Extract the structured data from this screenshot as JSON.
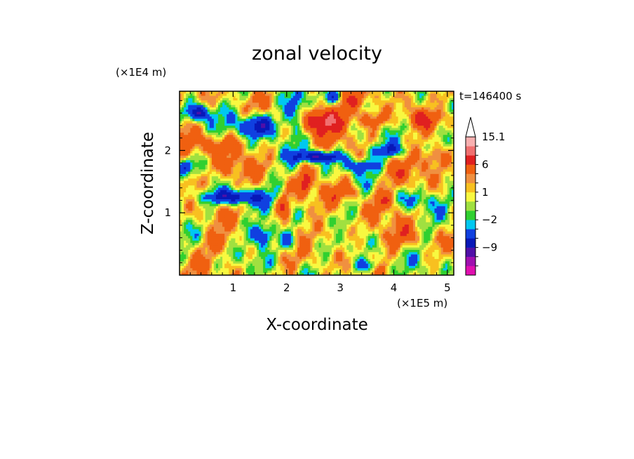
{
  "chart_data": {
    "type": "heatmap",
    "title": "zonal velocity",
    "xlabel": "X-coordinate",
    "ylabel": "Z-coordinate",
    "x_unit": "(×1E5 m)",
    "y_unit": "(×1E4 m)",
    "time_label": "t=146400 s",
    "xlim": [
      0,
      5.12
    ],
    "ylim": [
      0,
      2.95
    ],
    "x_ticks": [
      1,
      2,
      3,
      4,
      5
    ],
    "x_tick_labels": [
      "1",
      "2",
      "3",
      "4",
      "5"
    ],
    "y_ticks": [
      1,
      2
    ],
    "y_tick_labels": [
      "1",
      "2"
    ],
    "colorbar": {
      "levels": [
        -15,
        -12,
        -9,
        -6,
        -3,
        -2,
        -1,
        0,
        1,
        2,
        3,
        6,
        9,
        12,
        15.1
      ],
      "colors": [
        "#e010b0",
        "#a010b0",
        "#5010a8",
        "#0818b8",
        "#1040e0",
        "#00c8f0",
        "#30d030",
        "#a0e040",
        "#f8f840",
        "#f8c020",
        "#f09040",
        "#f06010",
        "#e02020",
        "#f07070",
        "#f8b0b0"
      ],
      "labels": [
        {
          "value": 15.1,
          "text": "15.1"
        },
        {
          "value": 6,
          "text": "6"
        },
        {
          "value": 1,
          "text": "1"
        },
        {
          "value": -2,
          "text": "−2"
        },
        {
          "value": -9,
          "text": "−9"
        }
      ],
      "extend": "max"
    },
    "features": [
      {
        "x": 1.45,
        "z": 2.4,
        "v": -9,
        "rx": 0.38,
        "rz": 0.18
      },
      {
        "x": 0.35,
        "z": 2.6,
        "v": -9,
        "rx": 0.22,
        "rz": 0.12
      },
      {
        "x": 1.0,
        "z": 1.25,
        "v": -9,
        "rx": 0.55,
        "rz": 0.12
      },
      {
        "x": 2.15,
        "z": 2.6,
        "v": -8,
        "rx": 0.22,
        "rz": 0.28
      },
      {
        "x": 2.6,
        "z": 1.9,
        "v": -10,
        "rx": 0.45,
        "rz": 0.09
      },
      {
        "x": 1.55,
        "z": 0.65,
        "v": -7,
        "rx": 0.22,
        "rz": 0.18
      },
      {
        "x": 2.05,
        "z": 0.55,
        "v": -6,
        "rx": 0.15,
        "rz": 0.15
      },
      {
        "x": 3.35,
        "z": 1.75,
        "v": -6,
        "rx": 0.3,
        "rz": 0.1
      },
      {
        "x": 3.9,
        "z": 2.0,
        "v": -6,
        "rx": 0.35,
        "rz": 0.12
      },
      {
        "x": 4.4,
        "z": 1.2,
        "v": -4,
        "rx": 0.25,
        "rz": 0.15
      },
      {
        "x": 0.1,
        "z": 1.75,
        "v": -4,
        "rx": 0.15,
        "rz": 0.1
      },
      {
        "x": 3.5,
        "z": 0.15,
        "v": -6,
        "rx": 0.2,
        "rz": 0.12
      },
      {
        "x": 2.9,
        "z": 2.85,
        "v": -5,
        "rx": 0.15,
        "rz": 0.1
      },
      {
        "x": 4.9,
        "z": 2.7,
        "v": -3,
        "rx": 0.2,
        "rz": 0.12
      },
      {
        "x": 2.6,
        "z": 2.5,
        "v": 9,
        "rx": 0.45,
        "rz": 0.22
      },
      {
        "x": 0.55,
        "z": 2.1,
        "v": 4,
        "rx": 0.5,
        "rz": 0.2
      },
      {
        "x": 0.2,
        "z": 1.5,
        "v": 4,
        "rx": 0.2,
        "rz": 0.15
      },
      {
        "x": 3.6,
        "z": 2.5,
        "v": 5,
        "rx": 0.3,
        "rz": 0.15
      },
      {
        "x": 4.45,
        "z": 2.5,
        "v": 5,
        "rx": 0.25,
        "rz": 0.15
      },
      {
        "x": 3.1,
        "z": 1.35,
        "v": 4,
        "rx": 0.3,
        "rz": 0.15
      },
      {
        "x": 1.95,
        "z": 1.1,
        "v": 6,
        "rx": 0.12,
        "rz": 0.2
      },
      {
        "x": 2.35,
        "z": 1.5,
        "v": 6,
        "rx": 0.1,
        "rz": 0.2
      },
      {
        "x": 3.8,
        "z": 1.2,
        "v": 4,
        "rx": 0.2,
        "rz": 0.15
      },
      {
        "x": 4.8,
        "z": 1.9,
        "v": 4,
        "rx": 0.3,
        "rz": 0.18
      },
      {
        "x": 2.9,
        "z": 0.7,
        "v": 3,
        "rx": 0.25,
        "rz": 0.15
      },
      {
        "x": 0.8,
        "z": 0.5,
        "v": 3,
        "rx": 0.3,
        "rz": 0.15
      },
      {
        "x": 4.2,
        "z": 0.6,
        "v": 3,
        "rx": 0.3,
        "rz": 0.2
      },
      {
        "x": 3.2,
        "z": 2.8,
        "v": 3,
        "rx": 0.3,
        "rz": 0.12
      },
      {
        "x": 1.0,
        "z": 1.7,
        "v": 2,
        "rx": 0.4,
        "rz": 0.18
      },
      {
        "x": 4.1,
        "z": 1.6,
        "v": 2,
        "rx": 0.35,
        "rz": 0.2
      }
    ]
  }
}
